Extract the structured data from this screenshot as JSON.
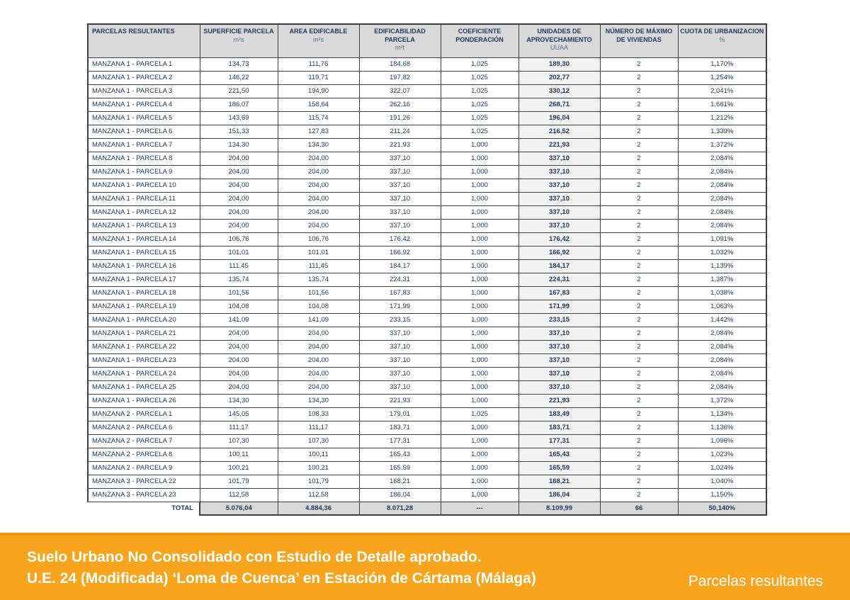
{
  "table": {
    "columns": [
      {
        "title": "PARCELAS RESULTANTES",
        "unit": ""
      },
      {
        "title": "SUPERFICIE PARCELA",
        "unit": "m²s"
      },
      {
        "title": "AREA EDIFICABLE",
        "unit": "m²s"
      },
      {
        "title": "EDIFICABILIDAD PARCELA",
        "unit": "m²t"
      },
      {
        "title": "COEFICIENTE PONDERACIÓN",
        "unit": ""
      },
      {
        "title": "UNIDADES DE APROVECHAMIENTO",
        "unit": "UUAA"
      },
      {
        "title": "NÚMERO DE MÁXIMO DE VIVIENDAS",
        "unit": ""
      },
      {
        "title": "CUOTA DE URBANIZACION",
        "unit": "%"
      }
    ],
    "rows": [
      [
        "MANZANA 1 - PARCELA 1",
        "134,73",
        "111,76",
        "184,68",
        "1,025",
        "189,30",
        "2",
        "1,170%"
      ],
      [
        "MANZANA 1 - PARCELA 2",
        "146,22",
        "119,71",
        "197,82",
        "1,025",
        "202,77",
        "2",
        "1,254%"
      ],
      [
        "MANZANA 1 - PARCELA 3",
        "221,50",
        "194,90",
        "322,07",
        "1,025",
        "330,12",
        "2",
        "2,041%"
      ],
      [
        "MANZANA 1 - PARCELA 4",
        "186,07",
        "158,64",
        "262,16",
        "1,025",
        "268,71",
        "2",
        "1,661%"
      ],
      [
        "MANZANA 1 - PARCELA 5",
        "143,69",
        "115,74",
        "191,26",
        "1,025",
        "196,04",
        "2",
        "1,212%"
      ],
      [
        "MANZANA 1 - PARCELA 6",
        "151,33",
        "127,83",
        "211,24",
        "1,025",
        "216,52",
        "2",
        "1,339%"
      ],
      [
        "MANZANA 1 - PARCELA 7",
        "134,30",
        "134,30",
        "221,93",
        "1,000",
        "221,93",
        "2",
        "1,372%"
      ],
      [
        "MANZANA 1 - PARCELA 8",
        "204,00",
        "204,00",
        "337,10",
        "1,000",
        "337,10",
        "2",
        "2,084%"
      ],
      [
        "MANZANA 1 - PARCELA 9",
        "204,00",
        "204,00",
        "337,10",
        "1,000",
        "337,10",
        "2",
        "2,084%"
      ],
      [
        "MANZANA 1 - PARCELA 10",
        "204,00",
        "204,00",
        "337,10",
        "1,000",
        "337,10",
        "2",
        "2,084%"
      ],
      [
        "MANZANA 1 - PARCELA 11",
        "204,00",
        "204,00",
        "337,10",
        "1,000",
        "337,10",
        "2",
        "2,084%"
      ],
      [
        "MANZANA 1 - PARCELA 12",
        "204,00",
        "204,00",
        "337,10",
        "1,000",
        "337,10",
        "2",
        "2,084%"
      ],
      [
        "MANZANA 1 - PARCELA 13",
        "204,00",
        "204,00",
        "337,10",
        "1,000",
        "337,10",
        "2",
        "2,084%"
      ],
      [
        "MANZANA 1 - PARCELA 14",
        "106,76",
        "106,76",
        "176,42",
        "1,000",
        "176,42",
        "2",
        "1,091%"
      ],
      [
        "MANZANA 1 - PARCELA 15",
        "101,01",
        "101,01",
        "166,92",
        "1,000",
        "166,92",
        "2",
        "1,032%"
      ],
      [
        "MANZANA 1 - PARCELA 16",
        "111,45",
        "111,45",
        "184,17",
        "1,000",
        "184,17",
        "2",
        "1,139%"
      ],
      [
        "MANZANA 1 - PARCELA 17",
        "135,74",
        "135,74",
        "224,31",
        "1,000",
        "224,31",
        "2",
        "1,387%"
      ],
      [
        "MANZANA 1 - PARCELA 18",
        "101,56",
        "101,56",
        "167,83",
        "1,000",
        "167,83",
        "2",
        "1,038%"
      ],
      [
        "MANZANA 1 - PARCELA 19",
        "104,08",
        "104,08",
        "171,99",
        "1,000",
        "171,99",
        "2",
        "1,063%"
      ],
      [
        "MANZANA 1 - PARCELA 20",
        "141,09",
        "141,09",
        "233,15",
        "1,000",
        "233,15",
        "2",
        "1,442%"
      ],
      [
        "MANZANA 1 - PARCELA 21",
        "204,00",
        "204,00",
        "337,10",
        "1,000",
        "337,10",
        "2",
        "2,084%"
      ],
      [
        "MANZANA 1 - PARCELA 22",
        "204,00",
        "204,00",
        "337,10",
        "1,000",
        "337,10",
        "2",
        "2,084%"
      ],
      [
        "MANZANA 1 - PARCELA 23",
        "204,00",
        "204,00",
        "337,10",
        "1,000",
        "337,10",
        "2",
        "2,084%"
      ],
      [
        "MANZANA 1 - PARCELA 24",
        "204,00",
        "204,00",
        "337,10",
        "1,000",
        "337,10",
        "2",
        "2,084%"
      ],
      [
        "MANZANA 1 - PARCELA 25",
        "204,00",
        "204,00",
        "337,10",
        "1,000",
        "337,10",
        "2",
        "2,084%"
      ],
      [
        "MANZANA 1 - PARCELA 26",
        "134,30",
        "134,30",
        "221,93",
        "1,000",
        "221,93",
        "2",
        "1,372%"
      ],
      [
        "MANZANA 2 - PARCELA 1",
        "145,05",
        "108,33",
        "179,01",
        "1,025",
        "183,49",
        "2",
        "1,134%"
      ],
      [
        "MANZANA 2 - PARCELA 6",
        "111,17",
        "111,17",
        "183,71",
        "1,000",
        "183,71",
        "2",
        "1,136%"
      ],
      [
        "MANZANA 2 - PARCELA 7",
        "107,30",
        "107,30",
        "177,31",
        "1,000",
        "177,31",
        "2",
        "1,096%"
      ],
      [
        "MANZANA 2 - PARCELA 8",
        "100,11",
        "100,11",
        "165,43",
        "1,000",
        "165,43",
        "2",
        "1,023%"
      ],
      [
        "MANZANA 2 - PARCELA 9",
        "100,21",
        "100,21",
        "165,59",
        "1,000",
        "165,59",
        "2",
        "1,024%"
      ],
      [
        "MANZANA 3 - PARCELA 22",
        "101,79",
        "101,79",
        "168,21",
        "1,000",
        "168,21",
        "2",
        "1,040%"
      ],
      [
        "MANZANA 3 - PARCELA 23",
        "112,58",
        "112,58",
        "186,04",
        "1,000",
        "186,04",
        "2",
        "1,150%"
      ]
    ],
    "total": {
      "label": "TOTAL",
      "values": [
        "5.076,04",
        "4.884,36",
        "8.071,28",
        "---",
        "8.109,99",
        "66",
        "50,140%"
      ]
    }
  },
  "footer": {
    "line1": "Suelo Urbano No Consolidado con Estudio de Detalle aprobado.",
    "line2": "U.E. 24 (Modificada) ‘Loma de Cuenca’ en Estación de Cártama (Málaga)",
    "right_label": "Parcelas resultantes"
  },
  "colors": {
    "banner_orange": "#f8a41d",
    "banner_top_line": "#ec950a",
    "header_gray": "#d9d9d9",
    "uuaa_column_gray": "#f2f2f2",
    "text_navy": "#1c3a5e",
    "border": "#3f3f3f"
  }
}
